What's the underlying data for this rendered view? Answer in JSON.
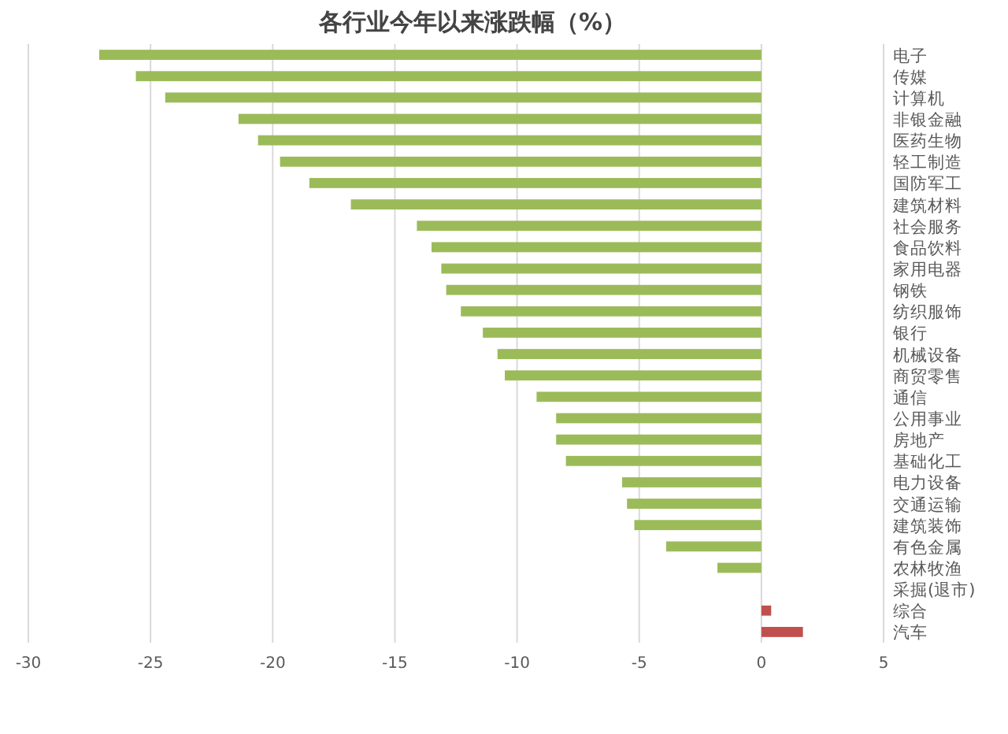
{
  "chart_data": {
    "type": "bar",
    "orientation": "horizontal",
    "title": "各行业今年以来涨跌幅（%）",
    "categories": [
      "电子",
      "传媒",
      "计算机",
      "非银金融",
      "医药生物",
      "轻工制造",
      "国防军工",
      "建筑材料",
      "社会服务",
      "食品饮料",
      "家用电器",
      "钢铁",
      "纺织服饰",
      "银行",
      "机械设备",
      "商贸零售",
      "通信",
      "公用事业",
      "房地产",
      "基础化工",
      "电力设备",
      "交通运输",
      "建筑装饰",
      "有色金属",
      "农林牧渔",
      "采掘(退市)",
      "综合",
      "汽车"
    ],
    "values": [
      -27.1,
      -25.6,
      -24.4,
      -21.4,
      -20.6,
      -19.7,
      -18.5,
      -16.8,
      -14.1,
      -13.5,
      -13.1,
      -12.9,
      -12.3,
      -11.4,
      -10.8,
      -10.5,
      -9.2,
      -8.4,
      -8.4,
      -8.0,
      -5.7,
      -5.5,
      -5.2,
      -3.9,
      -1.8,
      null,
      0.4,
      1.7
    ],
    "colors": [
      "#9bbb59",
      "#9bbb59",
      "#9bbb59",
      "#9bbb59",
      "#9bbb59",
      "#9bbb59",
      "#9bbb59",
      "#9bbb59",
      "#9bbb59",
      "#9bbb59",
      "#9bbb59",
      "#9bbb59",
      "#9bbb59",
      "#9bbb59",
      "#9bbb59",
      "#9bbb59",
      "#9bbb59",
      "#9bbb59",
      "#9bbb59",
      "#9bbb59",
      "#9bbb59",
      "#9bbb59",
      "#9bbb59",
      "#9bbb59",
      "#9bbb59",
      null,
      "#c0504d",
      "#c0504d"
    ],
    "xlim": [
      -30,
      5
    ],
    "xticks": [
      -30,
      -25,
      -20,
      -15,
      -10,
      -5,
      0,
      5
    ],
    "grid": "x"
  }
}
